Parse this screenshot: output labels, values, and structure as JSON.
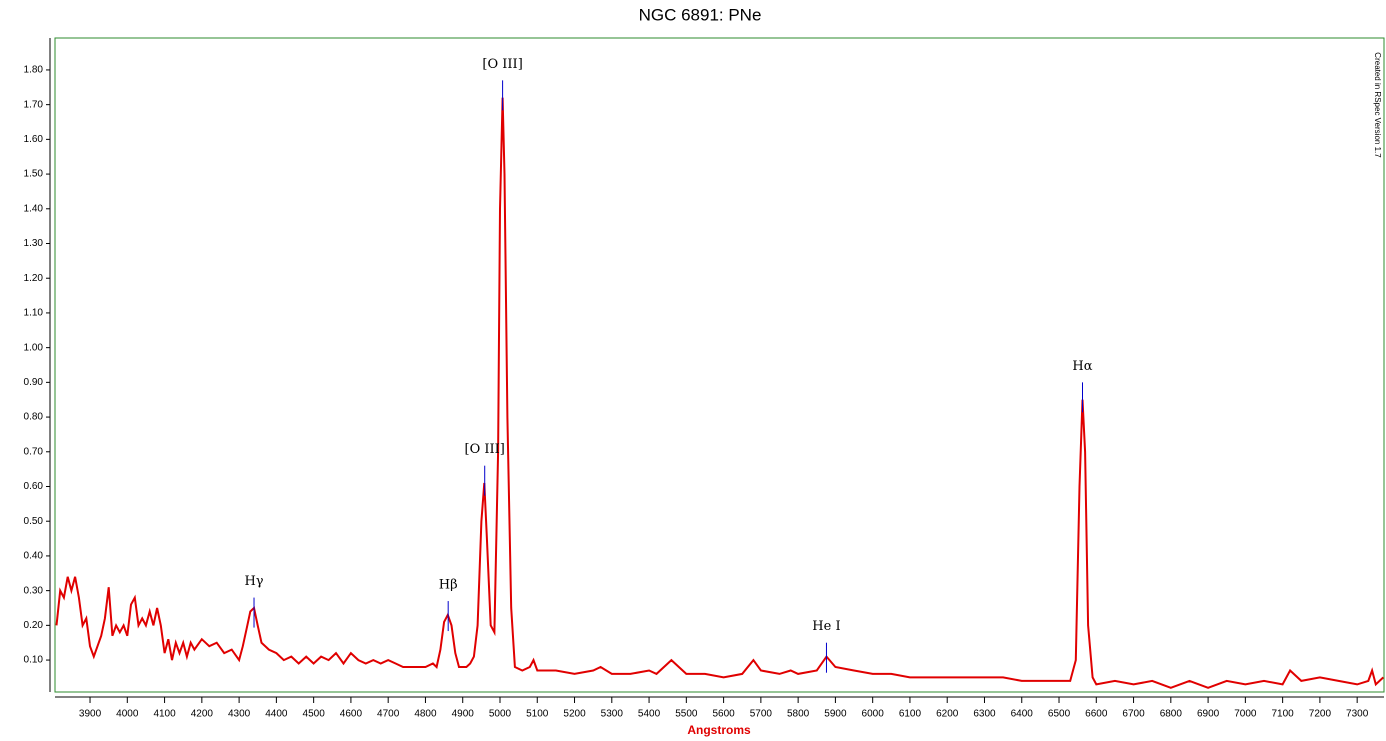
{
  "chart_data": {
    "type": "line",
    "title": "NGC 6891: PNe",
    "x_label": "Angstroms",
    "note": "Created in RSpec Version 1.7",
    "color": "#e00000",
    "marker_color": "#0000cc",
    "frame_color": "#2e8b2e",
    "xlim": [
      3806,
      7372
    ],
    "ylim": [
      0.008,
      1.892
    ],
    "xticks": [
      3900,
      4000,
      4100,
      4200,
      4300,
      4400,
      4500,
      4600,
      4700,
      4800,
      4900,
      5000,
      5100,
      5200,
      5300,
      5400,
      5500,
      5600,
      5700,
      5800,
      5900,
      6000,
      6100,
      6200,
      6300,
      6400,
      6500,
      6600,
      6700,
      6800,
      6900,
      7000,
      7100,
      7200,
      7300
    ],
    "yticks": [
      {
        "value": 0.1,
        "label": "0.10"
      },
      {
        "value": 0.2,
        "label": "0.20"
      },
      {
        "value": 0.3,
        "label": "0.30"
      },
      {
        "value": 0.4,
        "label": "0.40"
      },
      {
        "value": 0.5,
        "label": "0.50"
      },
      {
        "value": 0.6,
        "label": "0.60"
      },
      {
        "value": 0.7,
        "label": "0.70"
      },
      {
        "value": 0.8,
        "label": "0.80"
      },
      {
        "value": 0.9,
        "label": "0.90"
      },
      {
        "value": 1.0,
        "label": "1.00"
      },
      {
        "value": 1.1,
        "label": "1.10"
      },
      {
        "value": 1.2,
        "label": "1.20"
      },
      {
        "value": 1.3,
        "label": "1.30"
      },
      {
        "value": 1.4,
        "label": "1.40"
      },
      {
        "value": 1.5,
        "label": "1.50"
      },
      {
        "value": 1.6,
        "label": "1.60"
      },
      {
        "value": 1.7,
        "label": "1.70"
      },
      {
        "value": 1.8,
        "label": "1.80"
      }
    ],
    "x": [
      3810,
      3820,
      3830,
      3840,
      3850,
      3860,
      3870,
      3880,
      3890,
      3900,
      3910,
      3920,
      3930,
      3940,
      3950,
      3960,
      3970,
      3980,
      3990,
      4000,
      4010,
      4020,
      4030,
      4040,
      4050,
      4060,
      4070,
      4080,
      4090,
      4100,
      4110,
      4120,
      4130,
      4140,
      4150,
      4160,
      4170,
      4180,
      4200,
      4220,
      4240,
      4260,
      4280,
      4300,
      4310,
      4320,
      4330,
      4340,
      4350,
      4360,
      4380,
      4400,
      4420,
      4440,
      4460,
      4480,
      4500,
      4520,
      4540,
      4560,
      4580,
      4600,
      4620,
      4640,
      4660,
      4680,
      4700,
      4720,
      4740,
      4760,
      4780,
      4800,
      4820,
      4830,
      4840,
      4850,
      4860,
      4870,
      4880,
      4890,
      4900,
      4910,
      4920,
      4930,
      4940,
      4950,
      4958,
      4965,
      4975,
      4985,
      4995,
      5000,
      5007,
      5012,
      5020,
      5030,
      5040,
      5060,
      5080,
      5090,
      5100,
      5150,
      5200,
      5250,
      5270,
      5300,
      5350,
      5400,
      5420,
      5460,
      5500,
      5550,
      5600,
      5650,
      5680,
      5700,
      5750,
      5780,
      5800,
      5850,
      5876,
      5900,
      5950,
      6000,
      6050,
      6100,
      6150,
      6200,
      6250,
      6300,
      6350,
      6400,
      6450,
      6500,
      6530,
      6545,
      6555,
      6563,
      6570,
      6578,
      6590,
      6600,
      6650,
      6700,
      6750,
      6800,
      6850,
      6900,
      6950,
      7000,
      7050,
      7100,
      7120,
      7150,
      7200,
      7250,
      7300,
      7330,
      7340,
      7350,
      7370
    ],
    "values": [
      0.2,
      0.3,
      0.28,
      0.34,
      0.3,
      0.34,
      0.28,
      0.2,
      0.22,
      0.14,
      0.11,
      0.14,
      0.17,
      0.22,
      0.31,
      0.17,
      0.2,
      0.18,
      0.2,
      0.17,
      0.26,
      0.28,
      0.2,
      0.22,
      0.2,
      0.24,
      0.2,
      0.25,
      0.2,
      0.12,
      0.16,
      0.1,
      0.15,
      0.12,
      0.15,
      0.11,
      0.15,
      0.13,
      0.16,
      0.14,
      0.15,
      0.12,
      0.13,
      0.1,
      0.14,
      0.19,
      0.24,
      0.25,
      0.2,
      0.15,
      0.13,
      0.12,
      0.1,
      0.11,
      0.09,
      0.11,
      0.09,
      0.11,
      0.1,
      0.12,
      0.09,
      0.12,
      0.1,
      0.09,
      0.1,
      0.09,
      0.1,
      0.09,
      0.08,
      0.08,
      0.08,
      0.08,
      0.09,
      0.08,
      0.13,
      0.21,
      0.23,
      0.2,
      0.12,
      0.08,
      0.08,
      0.08,
      0.09,
      0.11,
      0.2,
      0.5,
      0.61,
      0.45,
      0.2,
      0.18,
      0.7,
      1.4,
      1.72,
      1.5,
      0.8,
      0.25,
      0.08,
      0.07,
      0.08,
      0.1,
      0.07,
      0.07,
      0.06,
      0.07,
      0.08,
      0.06,
      0.06,
      0.07,
      0.06,
      0.1,
      0.06,
      0.06,
      0.05,
      0.06,
      0.1,
      0.07,
      0.06,
      0.07,
      0.06,
      0.07,
      0.11,
      0.08,
      0.07,
      0.06,
      0.06,
      0.05,
      0.05,
      0.05,
      0.05,
      0.05,
      0.05,
      0.04,
      0.04,
      0.04,
      0.04,
      0.1,
      0.6,
      0.85,
      0.7,
      0.2,
      0.05,
      0.03,
      0.04,
      0.03,
      0.04,
      0.02,
      0.04,
      0.02,
      0.04,
      0.03,
      0.04,
      0.03,
      0.07,
      0.04,
      0.05,
      0.04,
      0.03,
      0.04,
      0.07,
      0.03,
      0.05
    ],
    "annotations": [
      {
        "label": "Hγ",
        "x": 4340,
        "y": 0.28
      },
      {
        "label": "Hβ",
        "x": 4861,
        "y": 0.27
      },
      {
        "label": "[O III]",
        "x": 4959,
        "y": 0.66
      },
      {
        "label": "[O III]",
        "x": 5007,
        "y": 1.77
      },
      {
        "label": "He I",
        "x": 5876,
        "y": 0.15
      },
      {
        "label": "Hα",
        "x": 6563,
        "y": 0.9
      }
    ]
  }
}
